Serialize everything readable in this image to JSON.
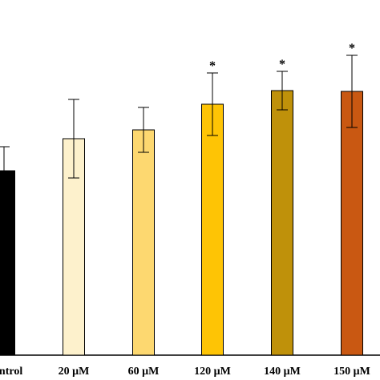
{
  "chart_data": {
    "type": "bar",
    "title": "",
    "xlabel": "",
    "ylabel": "",
    "categories": [
      "Control",
      "20 μM",
      "60 μM",
      "120 μM",
      "140 μM",
      "150 μM"
    ],
    "values": [
      230,
      270,
      281,
      313,
      330,
      329
    ],
    "errors": [
      30,
      49,
      28,
      39,
      24,
      45
    ],
    "significance": [
      "",
      "",
      "",
      "*",
      "*",
      "*"
    ],
    "colors": [
      "#000000",
      "#fdf1cc",
      "#fdd870",
      "#fec405",
      "#bf910a",
      "#c95812"
    ],
    "ylim": [
      0,
      443
    ],
    "grid": false,
    "legend": "none"
  }
}
